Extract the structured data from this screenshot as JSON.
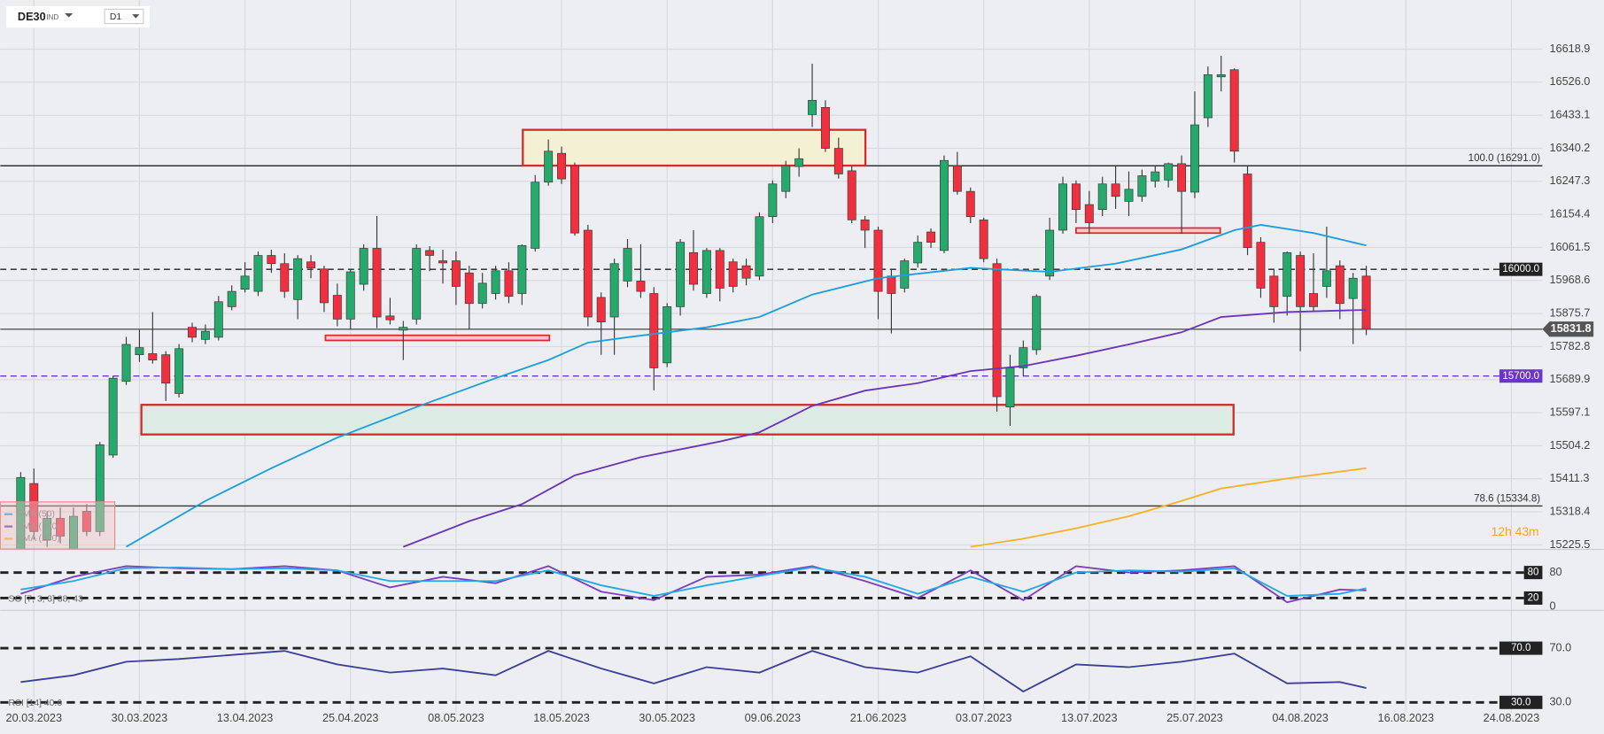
{
  "header": {
    "symbol": "DE30",
    "market": "IND",
    "timeframe": "D1",
    "countdown": "12h 43m"
  },
  "chart_data": [
    {
      "type": "candlestick",
      "x": [
        0,
        1,
        2,
        3,
        4,
        5,
        6,
        7,
        8,
        9,
        10,
        11,
        12,
        13,
        14,
        15,
        16,
        17,
        18,
        19,
        20,
        21,
        22,
        23,
        24,
        25,
        26,
        27,
        28,
        29,
        30,
        31,
        32,
        33,
        34,
        35,
        36,
        37,
        38,
        39,
        40,
        41,
        42,
        43,
        44,
        45,
        46,
        47,
        48,
        49,
        50,
        51,
        52,
        53,
        54,
        55,
        56,
        57,
        58,
        59,
        60,
        61,
        62,
        63,
        64,
        65,
        66,
        67,
        68,
        69,
        70,
        71,
        72,
        73,
        74,
        75,
        76,
        77,
        78,
        79,
        80,
        81,
        82,
        83,
        84,
        85,
        86,
        87,
        88,
        89,
        90,
        91,
        92,
        93,
        94,
        95,
        96,
        97,
        98,
        99,
        100,
        101,
        102
      ],
      "open": [
        15205,
        15398,
        15240,
        15300,
        15205,
        15320,
        15263,
        15478,
        15685,
        15760,
        15763,
        15760,
        15651,
        15837,
        15803,
        15809,
        15895,
        15944,
        15938,
        16039,
        16016,
        15915,
        16021,
        16001,
        15927,
        15860,
        15958,
        16059,
        15869,
        15829,
        15860,
        16053,
        16024,
        16024,
        15990,
        15904,
        15932,
        15996,
        15932,
        16059,
        16245,
        16326,
        16291,
        16110,
        15921,
        15866,
        15967,
        15967,
        15932,
        15737,
        15895,
        16047,
        15932,
        16053,
        16021,
        16010,
        15981,
        16148,
        16219,
        16289,
        16435,
        16455,
        16340,
        16277,
        16139,
        16110,
        15981,
        15947,
        16018,
        16105,
        16053,
        16291,
        16219,
        16139,
        16016,
        15613,
        15723,
        15774,
        15981,
        16110,
        16240,
        16182,
        16168,
        16240,
        16191,
        16205,
        16248,
        16251,
        16297,
        16217,
        16426,
        16541,
        16561,
        16268,
        16076,
        15981,
        15924,
        16039,
        15932,
        15952,
        16010,
        15918,
        15981
      ],
      "high": [
        15430,
        15440,
        15320,
        15330,
        15330,
        15340,
        15515,
        15700,
        15810,
        15830,
        15880,
        15770,
        15790,
        15850,
        15845,
        15925,
        15955,
        16020,
        16050,
        16055,
        16045,
        16040,
        16040,
        16010,
        15960,
        16000,
        16070,
        16150,
        15920,
        15855,
        16070,
        16065,
        16055,
        16050,
        16010,
        15990,
        16010,
        16020,
        16070,
        16265,
        16365,
        16345,
        16300,
        16125,
        15935,
        16030,
        16085,
        16070,
        15950,
        15905,
        16085,
        16110,
        16060,
        16060,
        16030,
        16030,
        16160,
        16250,
        16305,
        16340,
        16578,
        16475,
        16370,
        16290,
        16150,
        16120,
        16000,
        16030,
        16095,
        16115,
        16320,
        16330,
        16230,
        16145,
        16030,
        15760,
        15800,
        15930,
        16145,
        16260,
        16250,
        16220,
        16260,
        16290,
        16275,
        16280,
        16290,
        16300,
        16320,
        16500,
        16570,
        16600,
        16565,
        16290,
        16090,
        16000,
        16050,
        16050,
        16045,
        16120,
        16025,
        15990,
        16010
      ],
      "low": [
        15190,
        15240,
        15220,
        15230,
        15190,
        15250,
        15250,
        15470,
        15675,
        15740,
        15735,
        15630,
        15640,
        15795,
        15790,
        15800,
        15885,
        15935,
        15925,
        15990,
        15920,
        15860,
        15975,
        15880,
        15840,
        15830,
        15940,
        15835,
        15845,
        15745,
        15845,
        15995,
        15960,
        15900,
        15830,
        15890,
        15915,
        15905,
        15900,
        16050,
        16235,
        16240,
        16095,
        15840,
        15760,
        15760,
        15950,
        15920,
        15660,
        15725,
        15870,
        15940,
        15920,
        15910,
        15935,
        15955,
        15970,
        16130,
        16200,
        16260,
        16400,
        16330,
        16255,
        16130,
        16060,
        15860,
        15820,
        15935,
        16005,
        16060,
        16045,
        16210,
        16130,
        16020,
        15600,
        15560,
        15700,
        15760,
        15970,
        16100,
        16130,
        16100,
        16150,
        16170,
        16150,
        16190,
        16230,
        16230,
        16100,
        16200,
        16400,
        16500,
        16300,
        16040,
        15920,
        15850,
        15870,
        15770,
        15880,
        15920,
        15860,
        15790,
        15815
      ],
      "close": [
        15415,
        15263,
        15300,
        15250,
        15306,
        15263,
        15507,
        15694,
        15789,
        15780,
        15745,
        15680,
        15777,
        15809,
        15826,
        15909,
        15938,
        15981,
        16039,
        16016,
        15938,
        16030,
        16004,
        15906,
        15860,
        15993,
        16059,
        15866,
        15858,
        15837,
        16059,
        16039,
        16018,
        15952,
        15904,
        15961,
        15996,
        15924,
        16067,
        16245,
        16332,
        16254,
        16102,
        15866,
        15852,
        16016,
        16059,
        15938,
        15723,
        15895,
        16076,
        15958,
        16053,
        15947,
        15952,
        15975,
        16148,
        16240,
        16291,
        16311,
        16475,
        16340,
        16268,
        16139,
        16110,
        15938,
        15932,
        16024,
        16076,
        16076,
        16306,
        16219,
        16148,
        16030,
        15642,
        15723,
        15780,
        15924,
        16110,
        16240,
        16168,
        16131,
        16240,
        16205,
        16225,
        16263,
        16274,
        16297,
        16219,
        16406,
        16547,
        16547,
        16332,
        16061,
        15947,
        15895,
        16047,
        15895,
        15895,
        15996,
        15904,
        15975,
        15831.8
      ],
      "up_color": "#26a96c",
      "down_color": "#f0303f",
      "series": [
        {
          "name": "EMA (50)",
          "color": "#1c9fe0",
          "x": [
            8,
            14,
            19,
            24,
            30,
            36,
            40,
            43,
            46,
            52,
            56,
            60,
            65,
            72,
            78,
            83,
            88,
            92,
            94,
            98,
            102
          ],
          "values": [
            15220,
            15349,
            15441,
            15527,
            15613,
            15694,
            15745,
            15794,
            15809,
            15837,
            15866,
            15929,
            15975,
            16004,
            15993,
            16016,
            16056,
            16110,
            16125,
            16102,
            16067
          ]
        },
        {
          "name": "SMA (100)",
          "color": "#6a35b8",
          "x": [
            29,
            34,
            38,
            42,
            47,
            53,
            56,
            60,
            64,
            68,
            72,
            76,
            80,
            84,
            88,
            91,
            96,
            102
          ],
          "values": [
            15220,
            15292,
            15340,
            15421,
            15472,
            15516,
            15542,
            15616,
            15659,
            15680,
            15714,
            15728,
            15757,
            15789,
            15823,
            15866,
            15880,
            15886
          ]
        },
        {
          "name": "EMA (200)",
          "color": "#f7b22c",
          "x": [
            72,
            76,
            80,
            84,
            88,
            91,
            96,
            102
          ],
          "values": [
            15220,
            15243,
            15272,
            15306,
            15349,
            15384,
            15412,
            15441
          ]
        }
      ],
      "levels": [
        {
          "value": 16291,
          "label": "100.0 (16291.0)",
          "color": "#333333",
          "dash": false,
          "label_style": "text"
        },
        {
          "value": 16000,
          "label": "16000.0",
          "color": "#222222",
          "dash": true,
          "label_style": "box"
        },
        {
          "value": 15831.8,
          "color": "#555555",
          "dash": false,
          "label_style": "axis-box"
        },
        {
          "value": 15700,
          "label": "15700.0",
          "color": "#6a35c8",
          "dash": true,
          "label_style": "box"
        },
        {
          "value": 15334.8,
          "label": "78.6 (15334.8)",
          "color": "#333333",
          "dash": false,
          "label_style": "text"
        }
      ],
      "xlim": [
        -1.55,
        115.35
      ],
      "ylim": [
        15214,
        16757
      ],
      "xticks": [
        {
          "value": 1,
          "label": "20.03.2023"
        },
        {
          "value": 9,
          "label": "30.03.2023"
        },
        {
          "value": 17,
          "label": "13.04.2023"
        },
        {
          "value": 25,
          "label": "25.04.2023"
        },
        {
          "value": 33,
          "label": "08.05.2023"
        },
        {
          "value": 41,
          "label": "18.05.2023"
        },
        {
          "value": 49,
          "label": "30.05.2023"
        },
        {
          "value": 57,
          "label": "09.06.2023"
        },
        {
          "value": 65,
          "label": "21.06.2023"
        },
        {
          "value": 73,
          "label": "03.07.2023"
        },
        {
          "value": 81,
          "label": "13.07.2023"
        },
        {
          "value": 89,
          "label": "25.07.2023"
        },
        {
          "value": 97,
          "label": "04.08.2023"
        },
        {
          "value": 105,
          "label": "16.08.2023"
        },
        {
          "value": 113,
          "label": "24.08.2023"
        }
      ],
      "yticks": [
        16618.9,
        {
          "value": 16526,
          "label": "16526.0"
        },
        16433.1,
        16340.2,
        16247.3,
        16154.4,
        16061.5,
        15968.6,
        15875.7,
        15782.8,
        15689.9,
        15597.1,
        15504.2,
        15411.3,
        15318.4,
        15225.5
      ],
      "grid": true
    },
    {
      "type": "line",
      "title": "SO [7, 3, 3] 38, 43",
      "x": [
        0,
        4,
        8,
        12,
        16,
        20,
        24,
        28,
        32,
        36,
        40,
        44,
        48,
        52,
        56,
        60,
        64,
        68,
        72,
        76,
        80,
        84,
        88,
        92,
        96,
        100,
        102
      ],
      "series": [
        {
          "color": "#7b3fc0",
          "values": [
            30,
            70,
            95,
            90,
            88,
            95,
            85,
            45,
            70,
            55,
            95,
            35,
            15,
            70,
            75,
            95,
            60,
            20,
            85,
            15,
            95,
            80,
            85,
            95,
            10,
            40,
            38
          ]
        },
        {
          "color": "#25a8e8",
          "values": [
            40,
            60,
            90,
            92,
            88,
            90,
            85,
            60,
            60,
            60,
            85,
            50,
            25,
            50,
            72,
            92,
            70,
            30,
            70,
            35,
            80,
            85,
            82,
            90,
            25,
            30,
            43
          ]
        }
      ],
      "levels": [
        {
          "value": 80,
          "color": "#222222",
          "dash": true,
          "label_style": "box"
        },
        {
          "value": 20,
          "color": "#222222",
          "dash": true,
          "label_style": "box"
        }
      ],
      "xlim": [
        -1.55,
        115.35
      ],
      "ylim": [
        -4,
        133
      ],
      "yticks": [
        80,
        0
      ]
    },
    {
      "type": "line",
      "title": "RSI [14] 40.6",
      "x": [
        0,
        4,
        8,
        12,
        16,
        20,
        24,
        28,
        32,
        36,
        40,
        44,
        48,
        52,
        56,
        60,
        64,
        68,
        72,
        76,
        80,
        84,
        88,
        92,
        96,
        100,
        102
      ],
      "series": [
        {
          "color": "#3a3f9a",
          "values": [
            45,
            50,
            60,
            62,
            65,
            68,
            58,
            52,
            55,
            50,
            68,
            55,
            44,
            56,
            52,
            68,
            56,
            52,
            64,
            38,
            58,
            56,
            60,
            66,
            44,
            45,
            40.6
          ]
        }
      ],
      "levels": [
        {
          "value": 70,
          "label": "70.0",
          "color": "#222222",
          "dash": true,
          "label_style": "box"
        },
        {
          "value": 30,
          "label": "30.0",
          "color": "#222222",
          "dash": true,
          "label_style": "box"
        }
      ],
      "xlim": [
        -1.55,
        115.35
      ],
      "ylim": [
        22.5,
        95.7
      ],
      "yticks": [
        {
          "value": 70,
          "label": "70.0"
        },
        {
          "value": 30,
          "label": "30.0"
        }
      ]
    }
  ]
}
